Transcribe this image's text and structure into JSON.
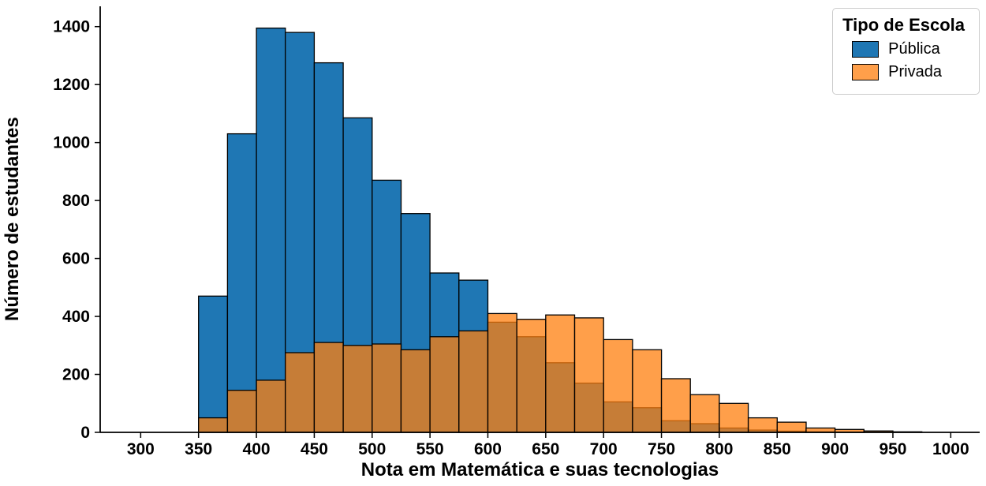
{
  "figure": {
    "background": "#ffffff",
    "xlabel": "Nota em Matemática e suas tecnologias",
    "ylabel": "Número de estudantes"
  },
  "legend": {
    "title": "Tipo de Escola",
    "entries": [
      {
        "label": "Pública",
        "color": "#1f77b4",
        "alpha": 1.0
      },
      {
        "label": "Privada",
        "color": "#ff7f0e",
        "alpha": 0.75
      }
    ]
  },
  "chart_data": {
    "type": "bar",
    "variant": "overlapping-histogram",
    "title": "",
    "xlabel": "Nota em Matemática e suas tecnologias",
    "ylabel": "Número de estudantes",
    "xlim": [
      265,
      1025
    ],
    "ylim": [
      0,
      1470
    ],
    "xticks": [
      300,
      350,
      400,
      450,
      500,
      550,
      600,
      650,
      700,
      750,
      800,
      850,
      900,
      950,
      1000
    ],
    "yticks": [
      0,
      200,
      400,
      600,
      800,
      1000,
      1200,
      1400
    ],
    "bin_edges": [
      350,
      375,
      400,
      425,
      450,
      475,
      500,
      525,
      550,
      575,
      600,
      625,
      650,
      675,
      700,
      725,
      750,
      775,
      800,
      825,
      850,
      875,
      900,
      925,
      950,
      975,
      1000
    ],
    "series": [
      {
        "name": "Pública",
        "color": "#1f77b4",
        "alpha": 1.0,
        "values": [
          470,
          1030,
          1395,
          1380,
          1275,
          1085,
          870,
          755,
          550,
          525,
          380,
          330,
          240,
          170,
          105,
          85,
          40,
          30,
          15,
          8,
          4,
          2,
          1,
          0,
          0,
          0
        ]
      },
      {
        "name": "Privada",
        "color": "#ff7f0e",
        "alpha": 0.75,
        "values": [
          50,
          145,
          180,
          275,
          310,
          300,
          305,
          285,
          330,
          350,
          410,
          390,
          405,
          395,
          320,
          285,
          185,
          130,
          100,
          50,
          35,
          15,
          10,
          5,
          2,
          0
        ]
      }
    ],
    "legend_title": "Tipo de Escola",
    "legend_position": "upper right",
    "grid": false,
    "edge_color": "#000000"
  }
}
